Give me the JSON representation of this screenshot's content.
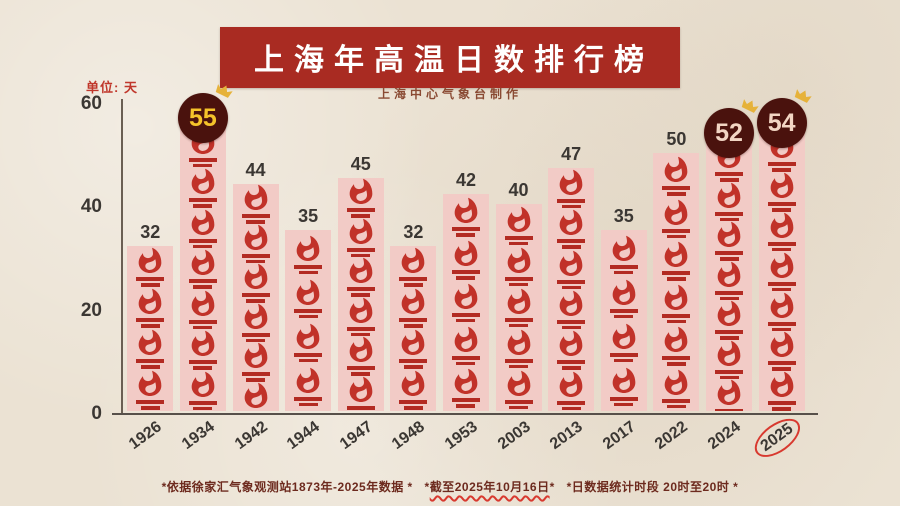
{
  "header": {
    "title": "上海年高温日数排行榜",
    "subtitle": "上海中心气象台制作",
    "banner_color": "#a92b22",
    "title_color": "#ffffff"
  },
  "axis": {
    "unit_label": "单位: 天"
  },
  "chart_data": {
    "type": "bar",
    "title": "上海年高温日数排行榜",
    "subtitle": "上海中心气象台制作",
    "ylabel": "天",
    "ylim": [
      0,
      60
    ],
    "yticks": [
      0,
      20,
      40,
      60
    ],
    "grid": false,
    "categories": [
      "1926",
      "1934",
      "1942",
      "1944",
      "1947",
      "1948",
      "1953",
      "2003",
      "2013",
      "2017",
      "2022",
      "2024",
      "2025"
    ],
    "values": [
      32,
      55,
      44,
      35,
      45,
      32,
      42,
      40,
      47,
      35,
      50,
      52,
      54
    ],
    "bars": [
      {
        "year": "1926",
        "value": 32
      },
      {
        "year": "1934",
        "value": 55,
        "badge": true,
        "badge_text_color": "#f5c32a",
        "crown": true
      },
      {
        "year": "1942",
        "value": 44
      },
      {
        "year": "1944",
        "value": 35
      },
      {
        "year": "1947",
        "value": 45
      },
      {
        "year": "1948",
        "value": 32
      },
      {
        "year": "1953",
        "value": 42
      },
      {
        "year": "2003",
        "value": 40
      },
      {
        "year": "2013",
        "value": 47
      },
      {
        "year": "2017",
        "value": 35
      },
      {
        "year": "2022",
        "value": 50
      },
      {
        "year": "2024",
        "value": 52,
        "badge": true,
        "badge_text_color": "#f2d5c3",
        "crown": true
      },
      {
        "year": "2025",
        "value": 54,
        "badge": true,
        "badge_text_color": "#f2d5c3",
        "crown": true,
        "circled": true
      }
    ],
    "colors": {
      "bar": "#f2cbc6",
      "flame": "#c13229",
      "badge_bg": "#4a120d",
      "crown": "#e6b23a",
      "banner": "#a92b22",
      "circle": "#d8392f"
    }
  },
  "footer": {
    "note1": "*依据徐家汇气象观测站1873年-2025年数据 *",
    "note2_open": "*",
    "note2_underlined": "截至2025年10月16日",
    "note2_close": "*",
    "note3": "*日数据统计时段 20时至20时 *"
  }
}
